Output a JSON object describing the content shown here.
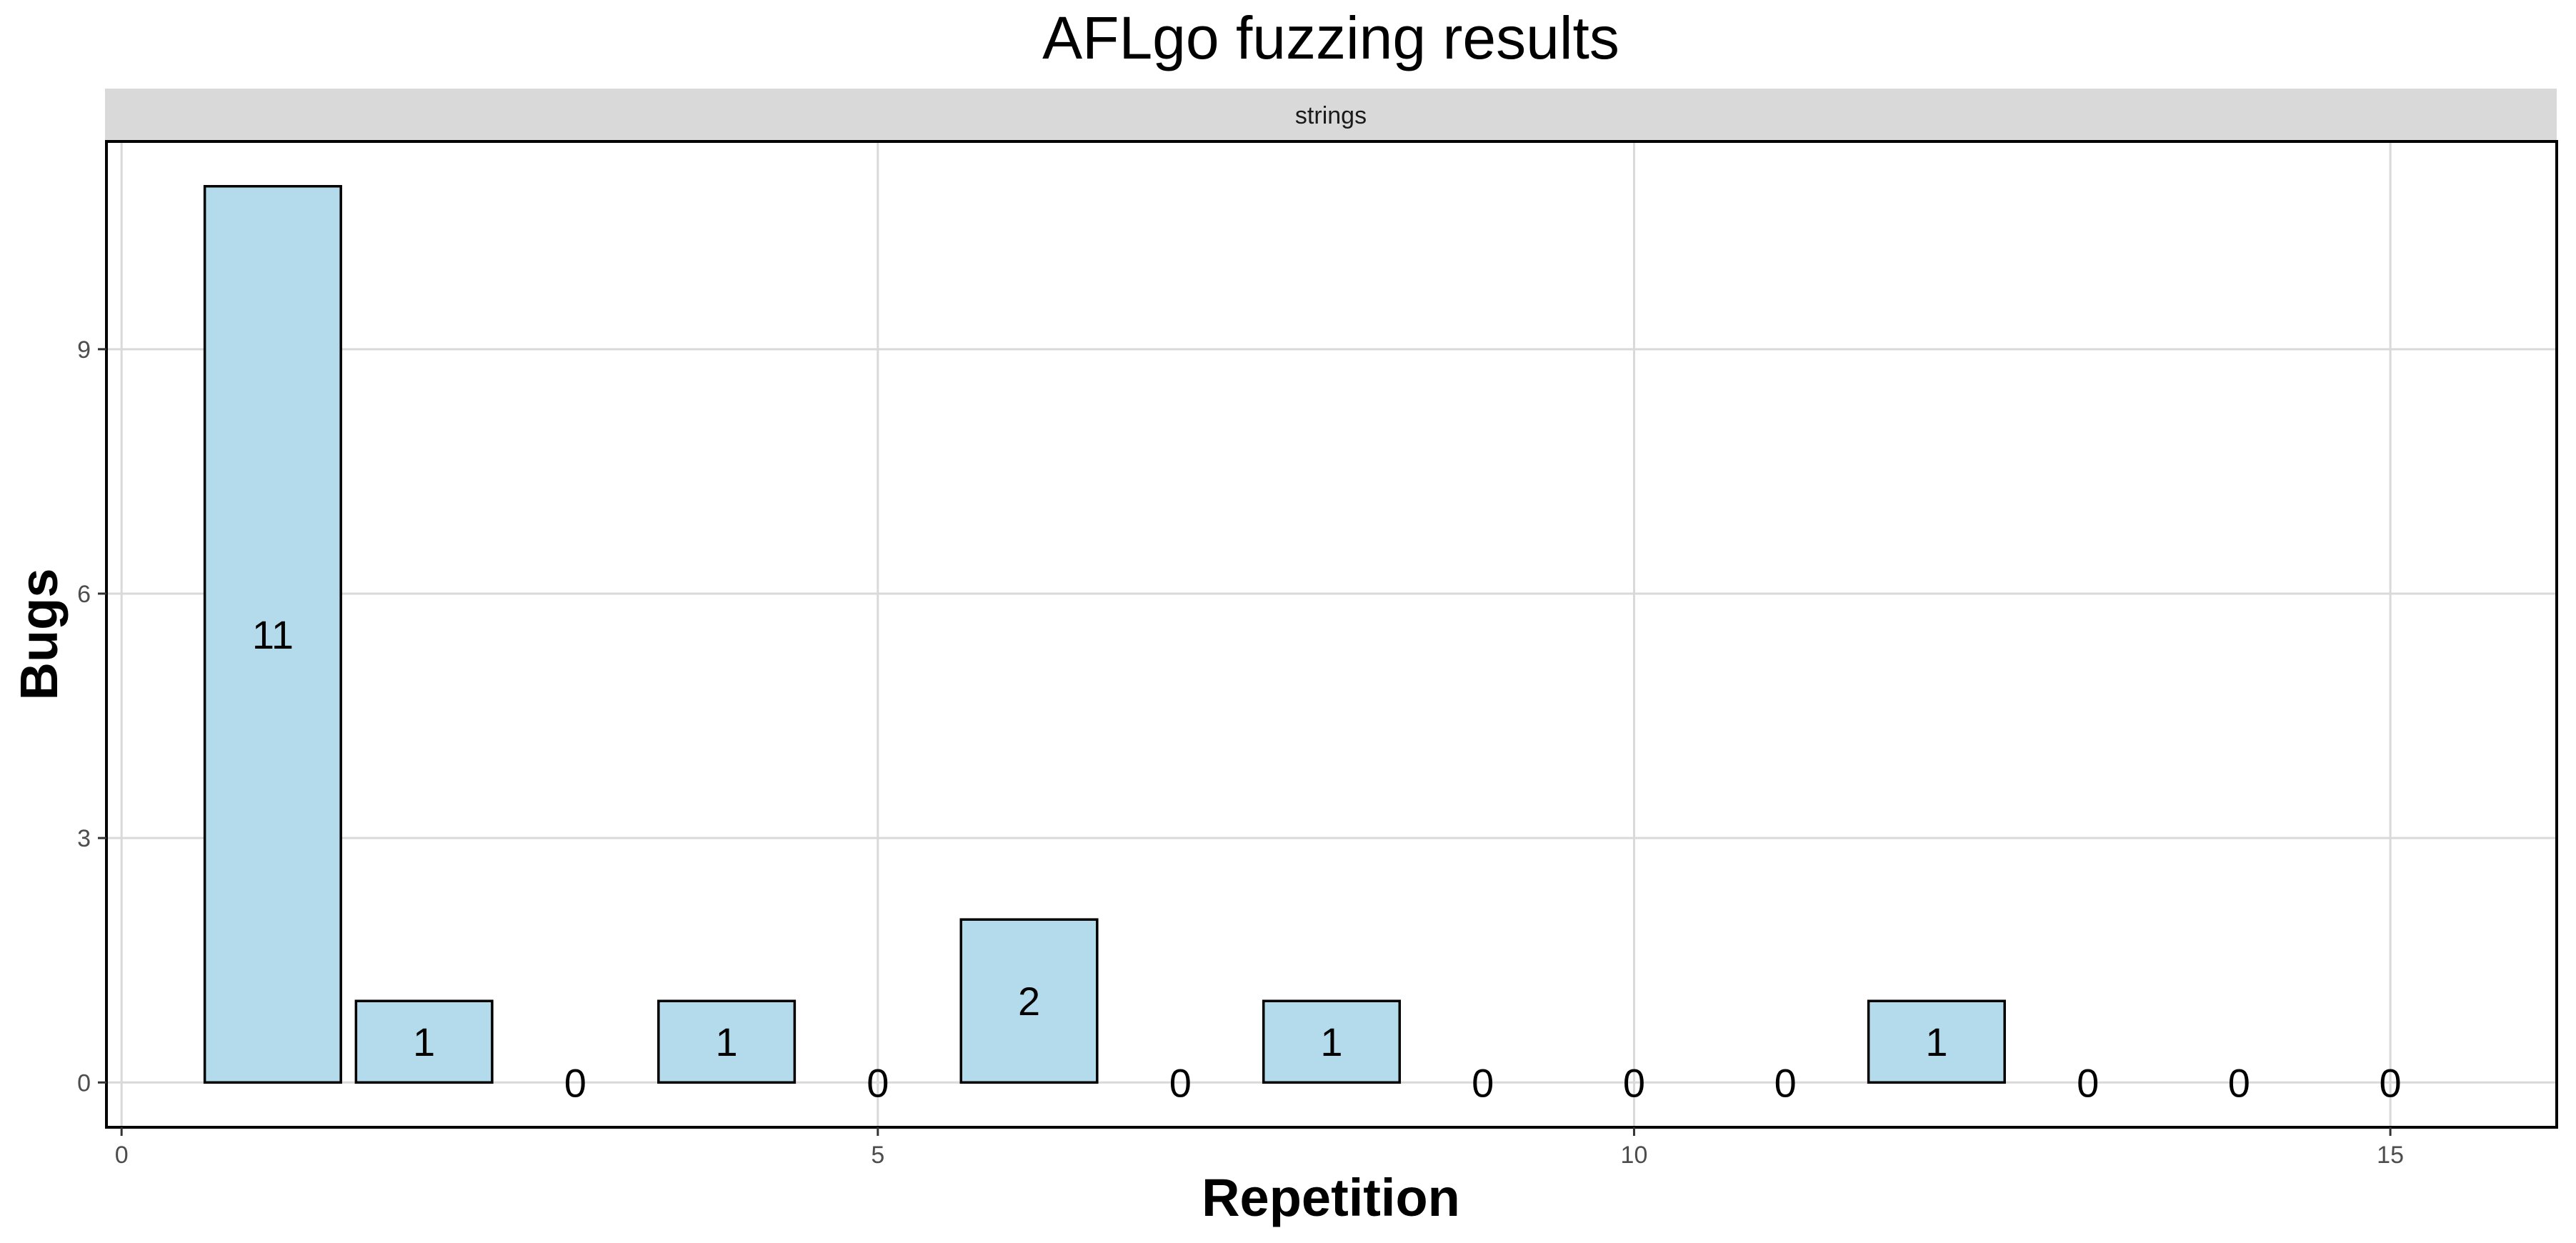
{
  "chart_data": {
    "type": "bar",
    "title": "AFLgo fuzzing results",
    "facet": "strings",
    "xlabel": "Repetition",
    "ylabel": "Bugs",
    "x": [
      1,
      2,
      3,
      4,
      5,
      6,
      7,
      8,
      9,
      10,
      11,
      12,
      13,
      14,
      15
    ],
    "values": [
      11,
      1,
      0,
      1,
      0,
      2,
      0,
      1,
      0,
      0,
      0,
      1,
      0,
      0,
      0
    ],
    "labels": [
      "11",
      "1",
      "0",
      "1",
      "0",
      "2",
      "0",
      "1",
      "0",
      "0",
      "0",
      "1",
      "0",
      "0",
      "0"
    ],
    "xlim": [
      -0.1,
      16.1
    ],
    "ylim": [
      -0.55,
      11.55
    ],
    "xticks": [
      0,
      5,
      10,
      15
    ],
    "xtick_labels": [
      "0",
      "5",
      "10",
      "15"
    ],
    "yticks": [
      0,
      3,
      6,
      9
    ],
    "ytick_labels": [
      "0",
      "3",
      "6",
      "9"
    ],
    "grid": true,
    "colors": {
      "bar_fill": "#b3dbeb",
      "bar_stroke": "#000000",
      "strip_fill": "#d9d9d9",
      "panel_border": "#000000",
      "grid": "#d9d9d9"
    }
  }
}
